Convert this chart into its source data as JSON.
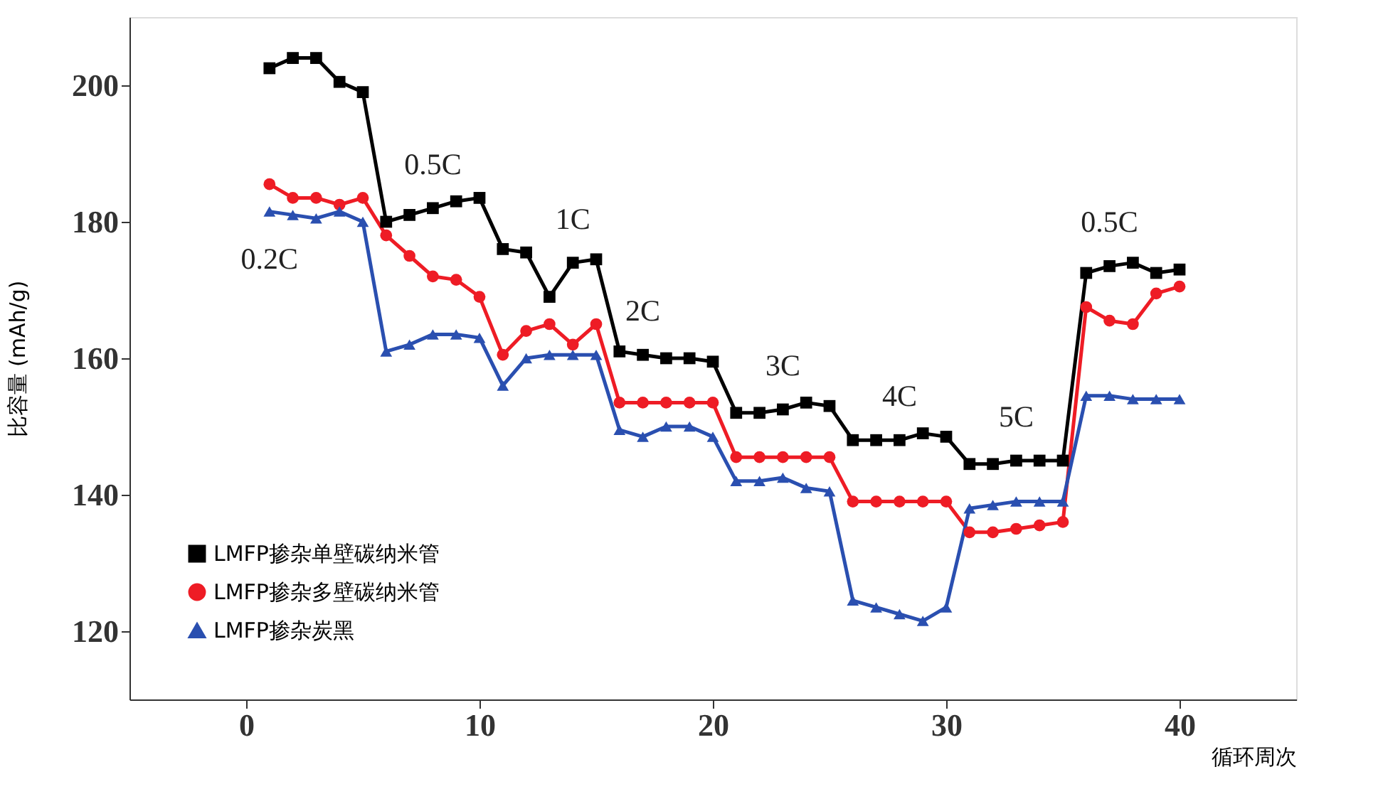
{
  "chart_data": {
    "type": "line",
    "xlabel": "循环周次",
    "ylabel": "比容量 (mAh/g)",
    "x": [
      1,
      2,
      3,
      4,
      5,
      6,
      7,
      8,
      9,
      10,
      11,
      12,
      13,
      14,
      15,
      16,
      17,
      18,
      19,
      20,
      21,
      22,
      23,
      24,
      25,
      26,
      27,
      28,
      29,
      30,
      31,
      32,
      33,
      34,
      35,
      36,
      37,
      38,
      39,
      40
    ],
    "series": [
      {
        "name": "LMFP掺杂单壁碳纳米管",
        "color": "#000000",
        "marker": "square",
        "values": [
          202.5,
          204,
          204,
          200.5,
          199,
          180,
          181,
          182,
          183,
          183.5,
          176,
          175.5,
          169,
          174,
          174.5,
          161,
          160.5,
          160,
          160,
          159.5,
          152,
          152,
          152.5,
          153.5,
          153,
          148,
          148,
          148,
          149,
          148.5,
          144.5,
          144.5,
          145,
          145,
          145,
          172.5,
          173.5,
          174,
          172.5,
          173
        ]
      },
      {
        "name": "LMFP掺杂多壁碳纳米管",
        "color": "#ee1c25",
        "marker": "circle",
        "values": [
          185.5,
          183.5,
          183.5,
          182.5,
          183.5,
          178,
          175,
          172,
          171.5,
          169,
          160.5,
          164,
          165,
          162,
          165,
          153.5,
          153.5,
          153.5,
          153.5,
          153.5,
          145.5,
          145.5,
          145.5,
          145.5,
          145.5,
          139,
          139,
          139,
          139,
          139,
          134.5,
          134.5,
          135,
          135.5,
          136,
          167.5,
          165.5,
          165,
          169.5,
          170.5
        ]
      },
      {
        "name": "LMFP掺杂炭黑",
        "color": "#2a4fb0",
        "marker": "triangle",
        "values": [
          181.5,
          181,
          180.5,
          181.5,
          180,
          161,
          162,
          163.5,
          163.5,
          163,
          156,
          160,
          160.5,
          160.5,
          160.5,
          149.5,
          148.5,
          150,
          150,
          148.5,
          142,
          142,
          142.5,
          141,
          140.5,
          124.5,
          123.5,
          122.5,
          121.5,
          123.5,
          138,
          138.5,
          139,
          139,
          139,
          154.5,
          154.5,
          154,
          154,
          154
        ]
      }
    ],
    "xlim": [
      -5,
      45
    ],
    "ylim": [
      110,
      210
    ],
    "xticks": [
      0,
      10,
      20,
      30,
      40
    ],
    "yticks": [
      120,
      140,
      160,
      180,
      200
    ],
    "grid": false,
    "legend": "bottom left",
    "line_style": "solid",
    "annotations": [
      {
        "text": "0.2C",
        "x": 1,
        "y": 181.5
      },
      {
        "text": "0.5C",
        "x": 8,
        "y": 182
      },
      {
        "text": "1C",
        "x": 14,
        "y": 174
      },
      {
        "text": "2C",
        "x": 17,
        "y": 160.5
      },
      {
        "text": "3C",
        "x": 23,
        "y": 152.5
      },
      {
        "text": "4C",
        "x": 28,
        "y": 148
      },
      {
        "text": "5C",
        "x": 33,
        "y": 145
      },
      {
        "text": "0.5C",
        "x": 37,
        "y": 173.5
      }
    ]
  }
}
